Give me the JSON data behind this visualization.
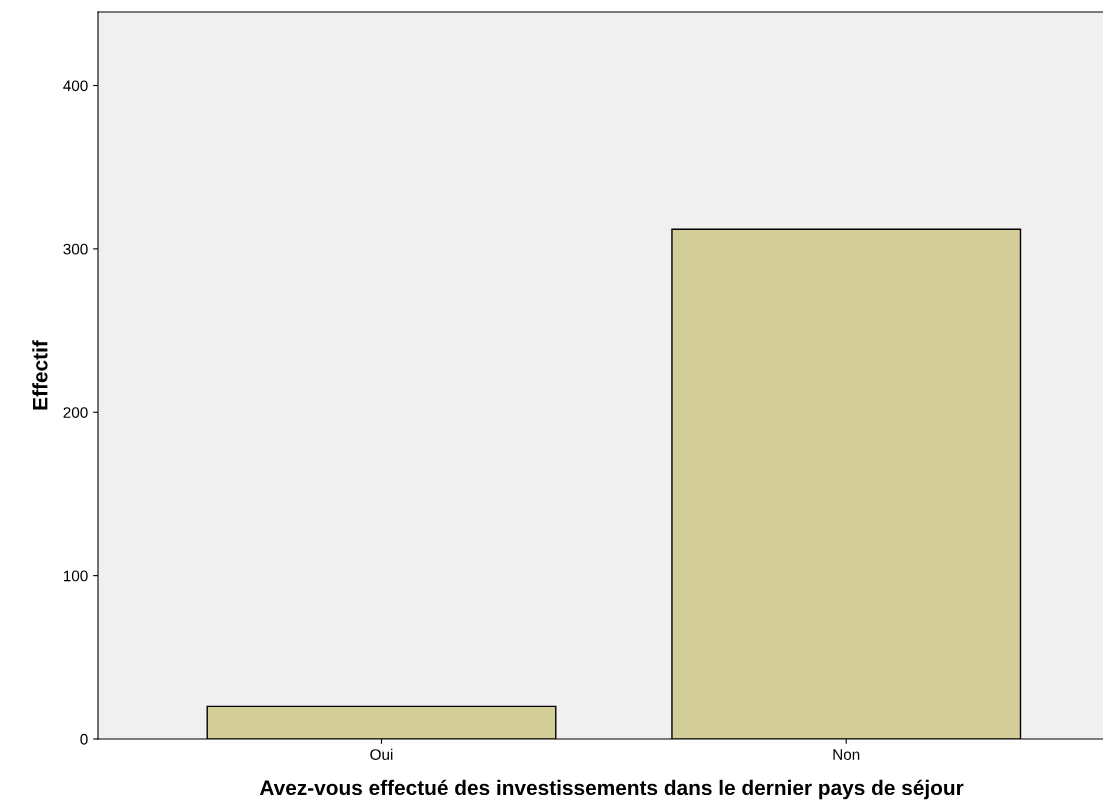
{
  "chart_data": {
    "type": "bar",
    "xlabel": "Avez-vous effectué des investissements dans le dernier pays de séjour",
    "ylabel": "Effectif",
    "categories": [
      "Oui",
      "Non"
    ],
    "values": [
      20,
      312
    ],
    "color": "#d3ce97",
    "ylim": [
      0,
      445
    ],
    "yticks": [
      0,
      100,
      200,
      300,
      400
    ],
    "grid": false,
    "legend": false
  }
}
